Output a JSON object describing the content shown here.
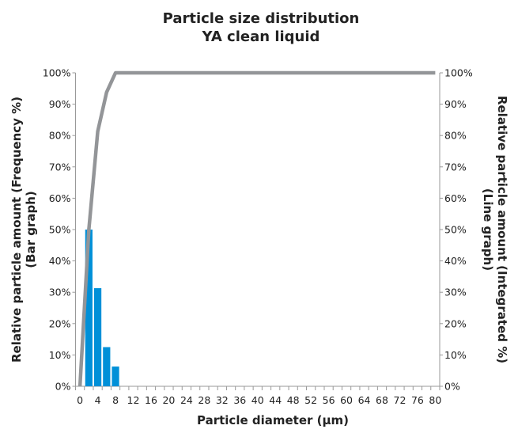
{
  "chart_data": {
    "type": "bar+line",
    "title": "Particle size distribution",
    "subtitle": "YA clean liquid",
    "xlabel": "Particle diameter (µm)",
    "ylabel_left": "Relative particle amount (Frequency %)",
    "ylabel_left_sub": "(Bar graph)",
    "ylabel_right": "Relative particle amount (Integrated %)",
    "ylabel_right_sub": "(Line graph)",
    "categories": [
      0,
      2,
      4,
      6,
      8,
      10,
      12,
      14,
      16,
      18,
      20,
      22,
      24,
      26,
      28,
      30,
      32,
      34,
      36,
      38,
      40,
      42,
      44,
      46,
      48,
      50,
      52,
      54,
      56,
      58,
      60,
      62,
      64,
      66,
      68,
      70,
      72,
      74,
      76,
      78,
      80
    ],
    "x_tick_labels": [
      "0",
      "4",
      "8",
      "12",
      "16",
      "20",
      "24",
      "28",
      "32",
      "36",
      "40",
      "44",
      "48",
      "52",
      "56",
      "60",
      "64",
      "68",
      "72",
      "76",
      "80"
    ],
    "y_tick_labels": [
      "0%",
      "10%",
      "20%",
      "30%",
      "40%",
      "50%",
      "60%",
      "70%",
      "80%",
      "90%",
      "100%"
    ],
    "ylim": [
      0,
      100
    ],
    "grid": false,
    "series": [
      {
        "type": "bar",
        "color": "#0090d8",
        "values": [
          0,
          50,
          31.3,
          12.5,
          6.3,
          0,
          0,
          0,
          0,
          0,
          0,
          0,
          0,
          0,
          0,
          0,
          0,
          0,
          0,
          0,
          0,
          0,
          0,
          0,
          0,
          0,
          0,
          0,
          0,
          0,
          0,
          0,
          0,
          0,
          0,
          0,
          0,
          0,
          0,
          0,
          0
        ]
      },
      {
        "type": "line",
        "color": "#939598",
        "values": [
          0,
          50,
          81.3,
          93.8,
          100,
          100,
          100,
          100,
          100,
          100,
          100,
          100,
          100,
          100,
          100,
          100,
          100,
          100,
          100,
          100,
          100,
          100,
          100,
          100,
          100,
          100,
          100,
          100,
          100,
          100,
          100,
          100,
          100,
          100,
          100,
          100,
          100,
          100,
          100,
          100,
          100
        ]
      }
    ]
  }
}
